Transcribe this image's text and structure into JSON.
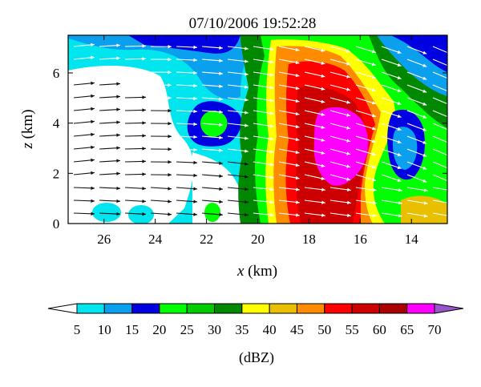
{
  "chart_data": {
    "type": "heatmap",
    "title": "07/10/2006 19:52:28",
    "xlabel_var": "x",
    "xlabel_unit": " (km)",
    "ylabel_var": "z",
    "ylabel_unit": " (km)",
    "xlim": [
      27.4,
      12.6
    ],
    "ylim": [
      0,
      7.5
    ],
    "x_ticks": [
      {
        "value": 26,
        "label": "26"
      },
      {
        "value": 24,
        "label": "24"
      },
      {
        "value": 22,
        "label": "22"
      },
      {
        "value": 20,
        "label": "20"
      },
      {
        "value": 18,
        "label": "18"
      },
      {
        "value": 16,
        "label": "16"
      },
      {
        "value": 14,
        "label": "14"
      }
    ],
    "y_ticks": [
      {
        "value": 0,
        "label": "0"
      },
      {
        "value": 2,
        "label": "2"
      },
      {
        "value": 4,
        "label": "4"
      },
      {
        "value": 6,
        "label": "6"
      }
    ],
    "colorbar": {
      "unit_label": "(dBZ)",
      "levels": [
        "5",
        "10",
        "15",
        "20",
        "25",
        "30",
        "35",
        "40",
        "45",
        "50",
        "55",
        "60",
        "65",
        "70"
      ],
      "colors": [
        "#ffffff",
        "#00e5ee",
        "#0aa0ee",
        "#0000e0",
        "#00ff00",
        "#00cc00",
        "#008800",
        "#ffff00",
        "#e8c000",
        "#ff8c00",
        "#ff0000",
        "#cc0000",
        "#aa0000",
        "#ff00ff",
        "#9955cc"
      ]
    },
    "field": [
      {
        "band": "5-10",
        "cells": [
          [
            27.4,
            6.5,
            2.5,
            1.0
          ],
          [
            26.6,
            3.2,
            1.2,
            1.4
          ],
          [
            26.1,
            0.5,
            1.2,
            0.6
          ]
        ]
      },
      {
        "band": "10-15",
        "cells": [
          [
            27.4,
            7.5,
            4.5,
            1.0
          ],
          [
            23.0,
            6.0,
            2.5,
            2.5
          ],
          [
            21.5,
            2.5,
            1.5,
            2.5
          ]
        ]
      },
      {
        "band": "15-20",
        "cells": [
          [
            25.5,
            7.5,
            2.5,
            1.5
          ],
          [
            22.5,
            5.0,
            2.5,
            1.5
          ],
          [
            21.0,
            7.5,
            2.0,
            2.5
          ]
        ]
      },
      {
        "band": "35-40",
        "cells": [
          [
            19.8,
            6.5,
            2.5,
            6.5
          ]
        ]
      },
      {
        "band": "50-55",
        "cells": [
          [
            19.0,
            6.0,
            4.5,
            6.0
          ]
        ]
      },
      {
        "band": "65-70",
        "cells": [
          [
            17.2,
            4.2,
            2.0,
            2.2
          ]
        ]
      }
    ],
    "wind_vectors": "dense field of arrows pointing mostly left-to-right with downward tilt on the right side"
  }
}
